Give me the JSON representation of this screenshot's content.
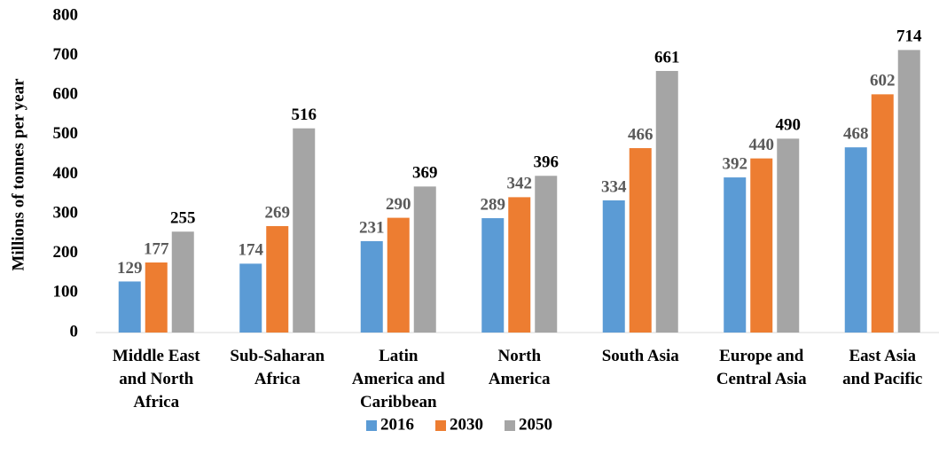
{
  "chart_data": {
    "type": "bar",
    "ylabel": "Millions of tonnes per year",
    "categories": [
      "Middle East and North Africa",
      "Sub-Saharan Africa",
      "Latin America and Caribbean",
      "North America",
      "South Asia",
      "Europe and Central Asia",
      "East Asia and Pacific"
    ],
    "series": [
      {
        "name": "2016",
        "color": "#5b9bd5",
        "values": [
          129,
          174,
          231,
          289,
          334,
          392,
          468
        ]
      },
      {
        "name": "2030",
        "color": "#ed7d31",
        "values": [
          177,
          269,
          290,
          342,
          466,
          440,
          602
        ]
      },
      {
        "name": "2050",
        "color": "#a5a5a5",
        "values": [
          255,
          516,
          369,
          396,
          661,
          490,
          714
        ]
      }
    ],
    "ylim": [
      0,
      800
    ],
    "yticks": [
      0,
      100,
      200,
      300,
      400,
      500,
      600,
      700,
      800
    ],
    "grid": false,
    "legend": "bottom"
  }
}
